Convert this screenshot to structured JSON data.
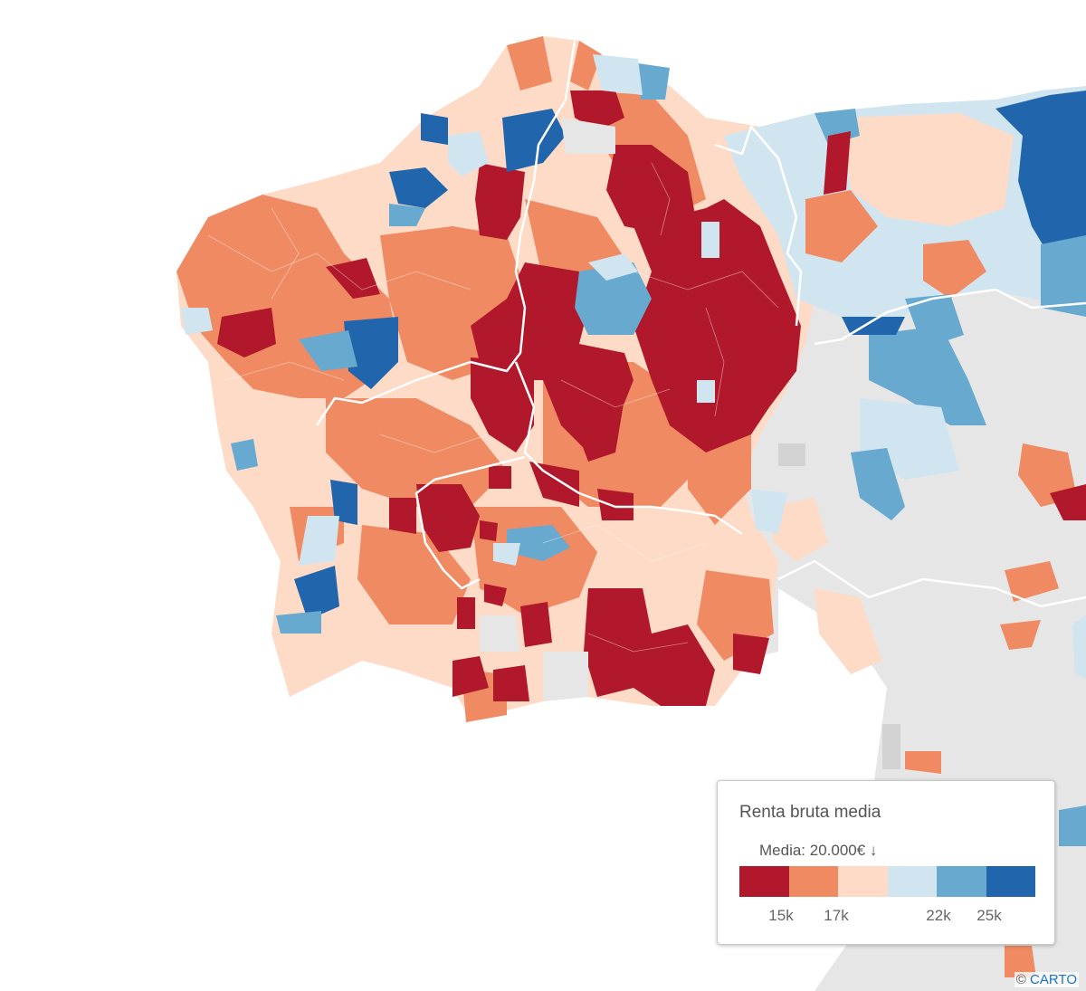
{
  "legend": {
    "title": "Renta bruta media",
    "mean_label": "Media: 20.000€ ↓",
    "bins": [
      {
        "color": "#b2182b"
      },
      {
        "color": "#ef8a62"
      },
      {
        "color": "#fddbc7"
      },
      {
        "color": "#d1e5f0"
      },
      {
        "color": "#67a9cf"
      },
      {
        "color": "#2166ac"
      }
    ],
    "ticks": [
      "15k",
      "17k",
      "22k",
      "25k"
    ]
  },
  "map": {
    "land_color": "#e6e6e6",
    "background_color": "#ffffff",
    "no_data_color": "#d2d2d2"
  },
  "attribution": {
    "symbol": "©",
    "link": "CARTO"
  }
}
